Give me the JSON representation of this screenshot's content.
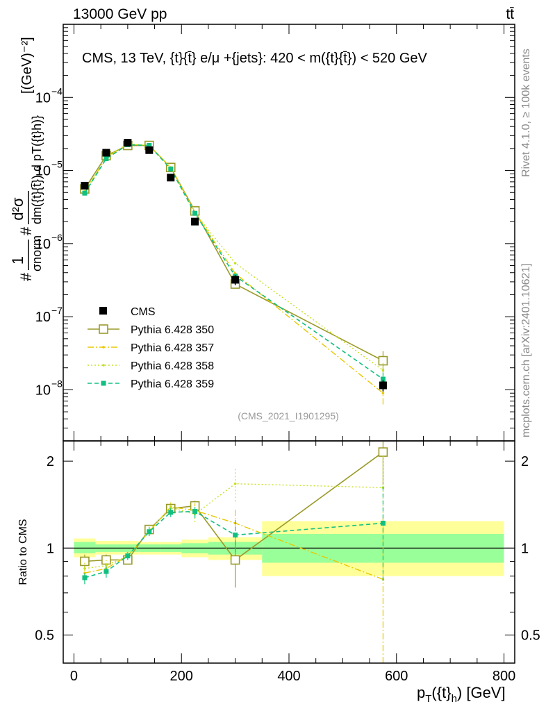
{
  "header": {
    "left": "13000 GeV pp",
    "right": "tt̄"
  },
  "side_labels": {
    "rivet": "Rivet 4.1.0, ≥ 100k events",
    "mcplots": "mcplots.cern.ch [arXiv:2401.10621]"
  },
  "colors": {
    "cms": "#000000",
    "p350": "#9a9a2a",
    "p357": "#e8c800",
    "p358": "#c8e020",
    "p359": "#10c080",
    "band_inner": "#99ff99",
    "band_outer": "#ffff99"
  },
  "chart_data": [
    {
      "type": "scatter",
      "title": "CMS, 13 TeV, {t}{t̄} e/μ +{jets}: 420 < m({t}{t̄}) < 520 GeV",
      "watermark": "(CMS_2021_I1901295)",
      "ylabel": "#frac{1}{σnorm} #frac{d²σ}{dm({t}{t̄}) d pT({t}h)} [(GeV)⁻²]",
      "ylabel_parts": {
        "num1": "1",
        "den1": "σnorm",
        "num2": "d²σ",
        "den2": "dm({t}{t̄}) d pT({t}h)}",
        "units": "[(GeV)⁻²]",
        "hash": "#"
      },
      "yscale": "log",
      "ylim": [
        2e-09,
        0.001
      ],
      "yticks": [
        {
          "value": 1e-08,
          "base": "10",
          "exp": "−8"
        },
        {
          "value": 1e-07,
          "base": "10",
          "exp": "−7"
        },
        {
          "value": 1e-06,
          "base": "10",
          "exp": "−6"
        },
        {
          "value": 1e-05,
          "base": "10",
          "exp": "−5"
        },
        {
          "value": 0.0001,
          "base": "10",
          "exp": "−4"
        }
      ],
      "xlim": [
        -20,
        820
      ],
      "x": [
        20,
        60,
        100,
        140,
        180,
        225,
        300,
        575
      ],
      "cms": {
        "name": "CMS",
        "values": [
          6.2e-06,
          1.75e-05,
          2.4e-05,
          1.9e-05,
          8e-06,
          2e-06,
          3.2e-07,
          1.15e-08
        ],
        "err_lo": [
          6e-07,
          1.5e-06,
          2e-06,
          1.5e-06,
          7e-07,
          2e-07,
          5e-08,
          2e-09
        ],
        "err_hi": [
          6e-07,
          1.5e-06,
          2e-06,
          1.5e-06,
          7e-07,
          2e-07,
          5e-08,
          2e-09
        ]
      },
      "series": [
        {
          "name": "Pythia 6.428 350",
          "style": "p350",
          "values": [
            5.6e-06,
            1.6e-05,
            2.2e-05,
            2.2e-05,
            1.1e-05,
            2.8e-06,
            2.8e-07,
            2.5e-08
          ]
        },
        {
          "name": "Pythia 6.428 357",
          "style": "p357",
          "values": [
            5e-06,
            1.5e-05,
            2.3e-05,
            2.2e-05,
            1.1e-05,
            2.7e-06,
            3.9e-07,
            9e-09
          ]
        },
        {
          "name": "Pythia 6.428 358",
          "style": "p358",
          "values": [
            5.2e-06,
            1.55e-05,
            2.3e-05,
            2.2e-05,
            1.1e-05,
            2.6e-06,
            5.4e-07,
            1.85e-08
          ]
        },
        {
          "name": "Pythia 6.428 359",
          "style": "p359",
          "values": [
            4.9e-06,
            1.45e-05,
            2.25e-05,
            2.2e-05,
            1.05e-05,
            2.6e-06,
            3.6e-07,
            1.4e-08
          ]
        }
      ]
    },
    {
      "type": "line",
      "title": "Ratio to CMS",
      "ylabel": "Ratio to CMS",
      "xlabel": "pT({t}h) [GeV]",
      "xlabel_parts": {
        "base": "p",
        "sub": "T",
        "open": "({t}",
        "sub2": "h",
        "close": ") [GeV]"
      },
      "yscale": "log",
      "ylim": [
        0.4,
        2.35
      ],
      "yticks": [
        0.5,
        1,
        2
      ],
      "xlim": [
        -20,
        820
      ],
      "xticks": [
        0,
        200,
        400,
        600,
        800
      ],
      "bands": [
        {
          "x0": 0,
          "x1": 40,
          "inner": [
            0.96,
            1.05
          ],
          "outer": [
            0.93,
            1.08
          ]
        },
        {
          "x0": 40,
          "x1": 80,
          "inner": [
            0.97,
            1.03
          ],
          "outer": [
            0.95,
            1.06
          ]
        },
        {
          "x0": 80,
          "x1": 120,
          "inner": [
            0.97,
            1.03
          ],
          "outer": [
            0.95,
            1.06
          ]
        },
        {
          "x0": 120,
          "x1": 160,
          "inner": [
            0.97,
            1.03
          ],
          "outer": [
            0.95,
            1.05
          ]
        },
        {
          "x0": 160,
          "x1": 200,
          "inner": [
            0.97,
            1.03
          ],
          "outer": [
            0.95,
            1.05
          ]
        },
        {
          "x0": 200,
          "x1": 250,
          "inner": [
            0.96,
            1.04
          ],
          "outer": [
            0.93,
            1.07
          ]
        },
        {
          "x0": 250,
          "x1": 350,
          "inner": [
            0.95,
            1.05
          ],
          "outer": [
            0.91,
            1.09
          ]
        },
        {
          "x0": 350,
          "x1": 800,
          "inner": [
            0.89,
            1.12
          ],
          "outer": [
            0.8,
            1.24
          ]
        }
      ],
      "series": [
        {
          "name": "Pythia 6.428 350",
          "style": "p350",
          "values": [
            0.9,
            0.91,
            0.91,
            1.16,
            1.37,
            1.4,
            0.91,
            2.15
          ],
          "err": [
            0.05,
            0.04,
            0.03,
            0.04,
            0.05,
            0.06,
            0.18,
            0.5
          ]
        },
        {
          "name": "Pythia 6.428 357",
          "style": "p357",
          "values": [
            0.82,
            0.85,
            0.94,
            1.14,
            1.39,
            1.35,
            1.22,
            0.78
          ],
          "err": [
            0.04,
            0.04,
            0.03,
            0.04,
            0.06,
            0.08,
            0.15,
            0.5
          ]
        },
        {
          "name": "Pythia 6.428 358",
          "style": "p358",
          "values": [
            0.85,
            0.87,
            0.94,
            1.15,
            1.38,
            1.31,
            1.67,
            1.62
          ],
          "err": [
            0.04,
            0.04,
            0.03,
            0.04,
            0.06,
            0.08,
            0.22,
            0.5
          ]
        },
        {
          "name": "Pythia 6.428 359",
          "style": "p359",
          "values": [
            0.79,
            0.83,
            0.94,
            1.14,
            1.33,
            1.34,
            1.11,
            1.22
          ],
          "err": [
            0.04,
            0.04,
            0.03,
            0.04,
            0.05,
            0.07,
            0.14,
            0.45
          ]
        }
      ]
    }
  ]
}
